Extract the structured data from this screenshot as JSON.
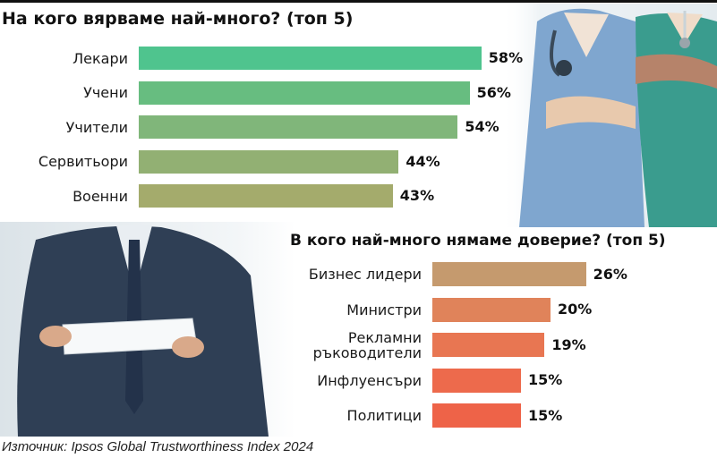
{
  "chart_data": [
    {
      "type": "bar",
      "orientation": "horizontal",
      "title": "На кого вярваме най-много? (топ 5)",
      "categories": [
        "Лекари",
        "Учени",
        "Учители",
        "Сервитьори",
        "Военни"
      ],
      "values": [
        58,
        56,
        54,
        44,
        43
      ],
      "value_labels": [
        "58%",
        "56%",
        "54%",
        "44%",
        "43%"
      ],
      "colors": [
        "#4fc48e",
        "#67bd80",
        "#80b67a",
        "#92b073",
        "#a4ab6c"
      ],
      "xlim": [
        0,
        100
      ],
      "grid": false,
      "legend": "none"
    },
    {
      "type": "bar",
      "orientation": "horizontal",
      "title": "В кого най-много нямаме доверие? (топ 5)",
      "categories": [
        "Бизнес лидери",
        "Министри",
        "Рекламни\nръководители",
        "Инфлуенсъри",
        "Политици"
      ],
      "values": [
        26,
        20,
        19,
        15,
        15
      ],
      "value_labels": [
        "26%",
        "20%",
        "19%",
        "15%",
        "15%"
      ],
      "colors": [
        "#c59a6e",
        "#e0835a",
        "#e87652",
        "#ed6a4c",
        "#ee6348"
      ],
      "xlim": [
        0,
        100
      ],
      "grid": false,
      "legend": "none"
    }
  ],
  "source": "Източник: Ipsos Global Trustworthiness Index 2024"
}
